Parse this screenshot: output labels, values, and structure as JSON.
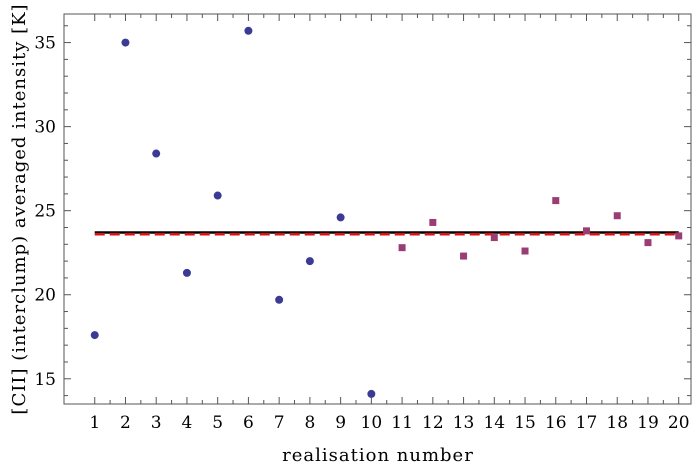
{
  "chart_data": {
    "type": "scatter",
    "xlabel": "realisation number",
    "ylabel": "[CII] (interclump) averaged intensity [K]",
    "xlim": [
      0,
      20.4
    ],
    "ylim": [
      13.5,
      36.7
    ],
    "x_ticks": [
      1,
      2,
      3,
      4,
      5,
      6,
      7,
      8,
      9,
      10,
      11,
      12,
      13,
      14,
      15,
      16,
      17,
      18,
      19,
      20
    ],
    "y_ticks": [
      15,
      20,
      25,
      30,
      35
    ],
    "grid": false,
    "series": [
      {
        "marker": "circle",
        "color": "#3b3b96",
        "x": [
          1,
          2,
          3,
          4,
          5,
          6,
          7,
          8,
          9,
          10
        ],
        "y": [
          17.6,
          35.0,
          28.4,
          21.3,
          25.9,
          35.7,
          19.7,
          22.0,
          24.6,
          14.1
        ]
      },
      {
        "marker": "square",
        "color": "#993d72",
        "x": [
          11,
          12,
          13,
          14,
          15,
          16,
          17,
          18,
          19,
          20
        ],
        "y": [
          22.8,
          24.3,
          22.3,
          23.4,
          22.6,
          25.6,
          23.8,
          24.7,
          23.1,
          23.5
        ]
      }
    ],
    "reference_lines": [
      {
        "style": "solid",
        "color": "#000000",
        "y": 23.7,
        "x_range": [
          1,
          20
        ]
      },
      {
        "style": "dashed",
        "color": "#dd1111",
        "y": 23.6,
        "x_range": [
          1,
          20
        ]
      }
    ]
  }
}
